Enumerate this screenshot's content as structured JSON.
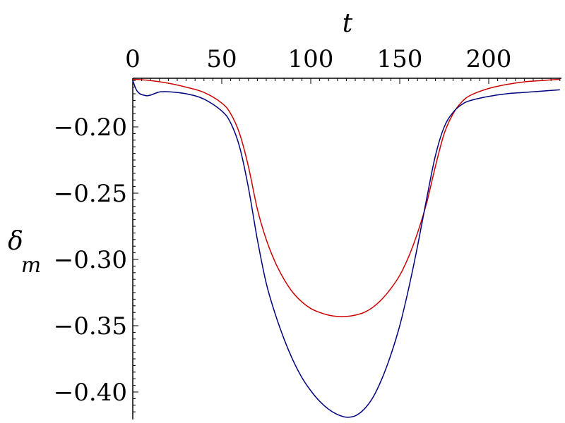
{
  "chart_data": {
    "type": "line",
    "title": "",
    "xlabel": "t",
    "ylabel": "δ",
    "ylabel_subscript": "m",
    "xlim": [
      0,
      240
    ],
    "ylim": [
      -0.42,
      -0.163
    ],
    "x_axis_position": "top",
    "grid": false,
    "xticks": [
      0,
      50,
      100,
      150,
      200
    ],
    "xtick_labels": [
      "0",
      "50",
      "100",
      "150",
      "200"
    ],
    "yticks": [
      -0.2,
      -0.25,
      -0.3,
      -0.35,
      -0.4
    ],
    "ytick_labels": [
      "−0.20",
      "−0.25",
      "−0.30",
      "−0.35",
      "−0.40"
    ],
    "series": [
      {
        "color": "#cc0000",
        "x": [
          0,
          10,
          20,
          30,
          40,
          50,
          55,
          60,
          65,
          70,
          75,
          80,
          85,
          90,
          95,
          100,
          105,
          110,
          115,
          120,
          125,
          130,
          135,
          140,
          145,
          150,
          155,
          160,
          165,
          170,
          175,
          180,
          185,
          190,
          200,
          210,
          220,
          230,
          240
        ],
        "y": [
          -0.164,
          -0.165,
          -0.167,
          -0.17,
          -0.174,
          -0.182,
          -0.19,
          -0.205,
          -0.23,
          -0.262,
          -0.285,
          -0.302,
          -0.315,
          -0.325,
          -0.332,
          -0.337,
          -0.34,
          -0.342,
          -0.343,
          -0.343,
          -0.342,
          -0.34,
          -0.336,
          -0.33,
          -0.322,
          -0.312,
          -0.298,
          -0.28,
          -0.258,
          -0.23,
          -0.205,
          -0.19,
          -0.181,
          -0.176,
          -0.171,
          -0.168,
          -0.166,
          -0.165,
          -0.164
        ]
      },
      {
        "color": "#000080",
        "x": [
          0,
          2,
          4,
          6,
          8,
          10,
          12,
          14,
          16,
          20,
          30,
          40,
          50,
          55,
          60,
          65,
          70,
          75,
          80,
          85,
          90,
          95,
          100,
          105,
          110,
          115,
          120,
          125,
          130,
          135,
          140,
          145,
          150,
          155,
          160,
          165,
          170,
          175,
          180,
          185,
          190,
          200,
          210,
          220,
          230,
          240
        ],
        "y": [
          -0.165,
          -0.172,
          -0.175,
          -0.176,
          -0.1765,
          -0.176,
          -0.175,
          -0.174,
          -0.1735,
          -0.1735,
          -0.175,
          -0.179,
          -0.188,
          -0.197,
          -0.215,
          -0.246,
          -0.285,
          -0.318,
          -0.341,
          -0.36,
          -0.376,
          -0.389,
          -0.399,
          -0.407,
          -0.413,
          -0.417,
          -0.419,
          -0.418,
          -0.413,
          -0.404,
          -0.39,
          -0.372,
          -0.35,
          -0.322,
          -0.29,
          -0.255,
          -0.222,
          -0.2,
          -0.189,
          -0.183,
          -0.18,
          -0.177,
          -0.175,
          -0.174,
          -0.173,
          -0.172
        ]
      }
    ]
  }
}
